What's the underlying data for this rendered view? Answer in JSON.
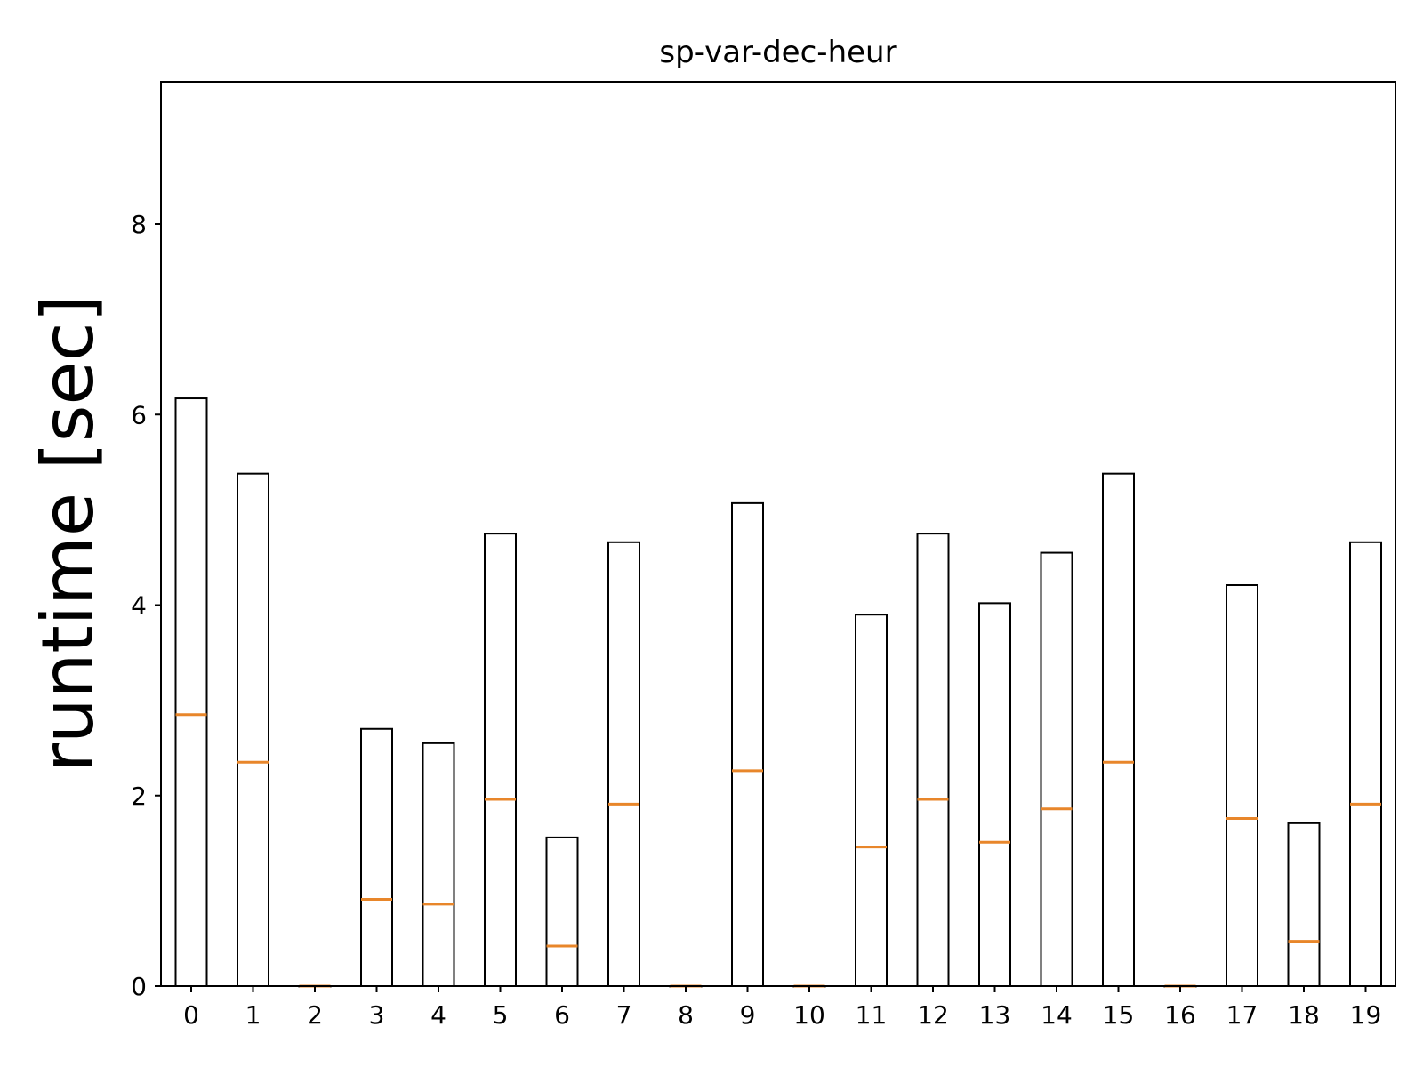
{
  "chart_data": {
    "type": "bar",
    "title": "sp-var-dec-heur",
    "ylabel": "runtime [sec]",
    "xlabel": "",
    "categories": [
      "0",
      "1",
      "2",
      "3",
      "4",
      "5",
      "6",
      "7",
      "8",
      "9",
      "10",
      "11",
      "12",
      "13",
      "14",
      "15",
      "16",
      "17",
      "18",
      "19"
    ],
    "highlighted_category": "8",
    "highlight_color": "#ff0000",
    "box_top": [
      6.17,
      5.38,
      0.0,
      2.7,
      2.55,
      4.75,
      1.56,
      4.66,
      0.0,
      5.07,
      0.0,
      3.9,
      4.75,
      4.02,
      4.55,
      5.38,
      0.0,
      4.21,
      1.71,
      4.66
    ],
    "median": [
      2.85,
      2.35,
      0.0,
      0.91,
      0.86,
      1.96,
      0.42,
      1.91,
      0.0,
      2.26,
      0.0,
      1.46,
      1.96,
      1.51,
      1.86,
      2.35,
      0.0,
      1.76,
      0.47,
      1.91
    ],
    "median_color": "#e8862a",
    "ylim": [
      0,
      9.5
    ],
    "yticks": [
      0,
      2,
      4,
      6,
      8
    ],
    "yticklabels": [
      "0",
      "2",
      "4",
      "6",
      "8"
    ],
    "grid": false
  }
}
